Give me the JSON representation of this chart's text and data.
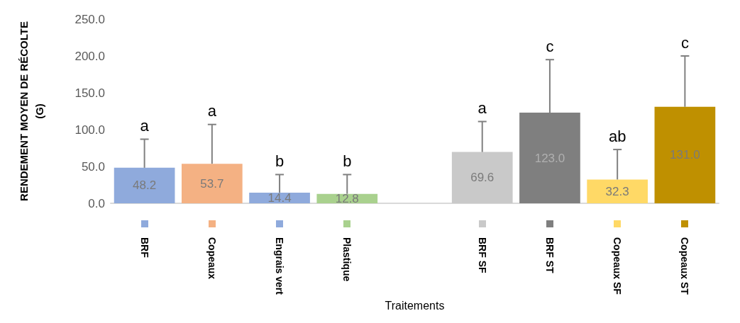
{
  "chart_data": {
    "type": "bar",
    "xlabel": "Traitements",
    "ylabel": "RENDEMENT MOYEN DE RÉCOLTE (G)",
    "categories": [
      "BRF",
      "Copeaux",
      "Engrais vert",
      "Plastique",
      null,
      "BRF SF",
      "BRF ST",
      "Copeaux SF",
      "Copeaux ST"
    ],
    "values": [
      48.2,
      53.7,
      14.4,
      12.8,
      null,
      69.6,
      123.0,
      32.3,
      131.0
    ],
    "colors": [
      "#8faadc",
      "#f4b183",
      "#8faadc",
      "#a9d18e",
      "#ffffff",
      "#c9c9c9",
      "#7f7f7f",
      "#ffd966",
      "#bf9000"
    ],
    "errors": [
      [
        48.2,
        87
      ],
      [
        53.7,
        107
      ],
      [
        14.4,
        39
      ],
      [
        12.8,
        39
      ],
      null,
      [
        69.6,
        111
      ],
      [
        123.0,
        195
      ],
      [
        32.3,
        73
      ],
      [
        131.0,
        200
      ]
    ],
    "value_labels": [
      "48.2",
      "53.7",
      "14.4",
      "12.8",
      null,
      "69.6",
      "123.0",
      "32.3",
      "131.0"
    ],
    "annotations": [
      {
        "text": "a",
        "x": "BRF",
        "y": 87
      },
      {
        "text": "a",
        "x": "Copeaux",
        "y": 107
      },
      {
        "text": "b",
        "x": "Engrais vert",
        "y": 39
      },
      {
        "text": "b",
        "x": "Plastique",
        "y": 39
      },
      {
        "text": "a",
        "x": "BRF SF",
        "y": 111
      },
      {
        "text": "c",
        "x": "BRF ST",
        "y": 195
      },
      {
        "text": "ab",
        "x": "Copeaux SF",
        "y": 73
      },
      {
        "text": "c",
        "x": "Copeaux ST",
        "y": 200
      }
    ],
    "ylim": [
      0,
      250
    ],
    "yticks": [
      {
        "value": 0,
        "label": "0.0"
      },
      {
        "value": 50,
        "label": "50.0"
      },
      {
        "value": 100,
        "label": "100.0"
      },
      {
        "value": 150,
        "label": "150.0"
      },
      {
        "value": 200,
        "label": "200.0"
      },
      {
        "value": 250,
        "label": "250.0"
      }
    ],
    "grid": false
  }
}
